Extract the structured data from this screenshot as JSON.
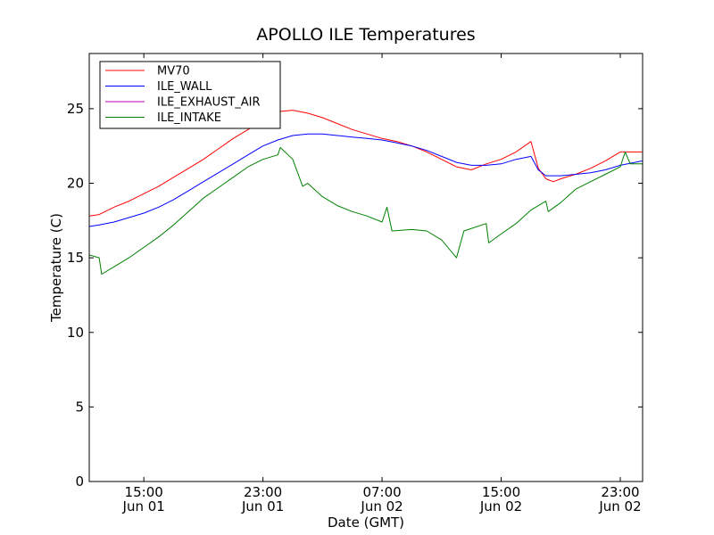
{
  "chart_data": {
    "type": "line",
    "title": "APOLLO ILE Temperatures",
    "xlabel": "Date (GMT)",
    "ylabel": "Temperature (C)",
    "xlim": [
      "2012-06-01 11:20",
      "2012-06-03 00:30"
    ],
    "ylim": [
      0,
      28.7
    ],
    "x_ticks": [
      {
        "value": "2012-06-01 15:00",
        "label": "15:00",
        "sublabel": "Jun 01"
      },
      {
        "value": "2012-06-01 23:00",
        "label": "23:00",
        "sublabel": "Jun 01"
      },
      {
        "value": "2012-06-02 07:00",
        "label": "07:00",
        "sublabel": "Jun 02"
      },
      {
        "value": "2012-06-02 15:00",
        "label": "15:00",
        "sublabel": "Jun 02"
      },
      {
        "value": "2012-06-02 23:00",
        "label": "23:00",
        "sublabel": "Jun 02"
      }
    ],
    "y_ticks": [
      0,
      5,
      10,
      15,
      20,
      25
    ],
    "grid": false,
    "legend": {
      "position": "top-left"
    },
    "series": [
      {
        "name": "MV70",
        "color": "#ff0000",
        "points": [
          [
            "2012-06-01 11:20",
            17.8
          ],
          [
            "2012-06-01 12:00",
            17.9
          ],
          [
            "2012-06-01 13:00",
            18.4
          ],
          [
            "2012-06-01 14:00",
            18.8
          ],
          [
            "2012-06-01 15:00",
            19.3
          ],
          [
            "2012-06-01 16:00",
            19.8
          ],
          [
            "2012-06-01 17:00",
            20.4
          ],
          [
            "2012-06-01 18:00",
            21.0
          ],
          [
            "2012-06-01 19:00",
            21.6
          ],
          [
            "2012-06-01 20:00",
            22.3
          ],
          [
            "2012-06-01 21:00",
            23.0
          ],
          [
            "2012-06-01 22:00",
            23.6
          ],
          [
            "2012-06-01 23:00",
            24.2
          ],
          [
            "2012-06-02 00:00",
            24.8
          ],
          [
            "2012-06-02 01:00",
            24.9
          ],
          [
            "2012-06-02 02:00",
            24.7
          ],
          [
            "2012-06-02 03:00",
            24.4
          ],
          [
            "2012-06-02 04:00",
            24.0
          ],
          [
            "2012-06-02 05:00",
            23.6
          ],
          [
            "2012-06-02 06:00",
            23.3
          ],
          [
            "2012-06-02 07:00",
            23.0
          ],
          [
            "2012-06-02 08:00",
            22.8
          ],
          [
            "2012-06-02 09:00",
            22.5
          ],
          [
            "2012-06-02 10:00",
            22.1
          ],
          [
            "2012-06-02 11:00",
            21.6
          ],
          [
            "2012-06-02 12:00",
            21.1
          ],
          [
            "2012-06-02 13:00",
            20.9
          ],
          [
            "2012-06-02 14:00",
            21.3
          ],
          [
            "2012-06-02 15:00",
            21.6
          ],
          [
            "2012-06-02 16:00",
            22.1
          ],
          [
            "2012-06-02 17:00",
            22.8
          ],
          [
            "2012-06-02 17:30",
            21.0
          ],
          [
            "2012-06-02 18:00",
            20.3
          ],
          [
            "2012-06-02 18:30",
            20.1
          ],
          [
            "2012-06-02 19:00",
            20.3
          ],
          [
            "2012-06-02 20:00",
            20.6
          ],
          [
            "2012-06-02 21:00",
            21.0
          ],
          [
            "2012-06-02 22:00",
            21.5
          ],
          [
            "2012-06-02 23:00",
            22.1
          ],
          [
            "2012-06-03 00:30",
            22.1
          ]
        ]
      },
      {
        "name": "ILE_WALL",
        "color": "#0000ff",
        "points": [
          [
            "2012-06-01 11:20",
            17.1
          ],
          [
            "2012-06-01 12:00",
            17.2
          ],
          [
            "2012-06-01 13:00",
            17.4
          ],
          [
            "2012-06-01 14:00",
            17.7
          ],
          [
            "2012-06-01 15:00",
            18.0
          ],
          [
            "2012-06-01 16:00",
            18.4
          ],
          [
            "2012-06-01 17:00",
            18.9
          ],
          [
            "2012-06-01 18:00",
            19.5
          ],
          [
            "2012-06-01 19:00",
            20.1
          ],
          [
            "2012-06-01 20:00",
            20.7
          ],
          [
            "2012-06-01 21:00",
            21.3
          ],
          [
            "2012-06-01 22:00",
            21.9
          ],
          [
            "2012-06-01 23:00",
            22.5
          ],
          [
            "2012-06-02 00:00",
            22.9
          ],
          [
            "2012-06-02 01:00",
            23.2
          ],
          [
            "2012-06-02 02:00",
            23.3
          ],
          [
            "2012-06-02 03:00",
            23.3
          ],
          [
            "2012-06-02 04:00",
            23.2
          ],
          [
            "2012-06-02 05:00",
            23.1
          ],
          [
            "2012-06-02 06:00",
            23.0
          ],
          [
            "2012-06-02 07:00",
            22.9
          ],
          [
            "2012-06-02 08:00",
            22.7
          ],
          [
            "2012-06-02 09:00",
            22.5
          ],
          [
            "2012-06-02 10:00",
            22.2
          ],
          [
            "2012-06-02 11:00",
            21.8
          ],
          [
            "2012-06-02 12:00",
            21.4
          ],
          [
            "2012-06-02 13:00",
            21.2
          ],
          [
            "2012-06-02 14:00",
            21.2
          ],
          [
            "2012-06-02 15:00",
            21.3
          ],
          [
            "2012-06-02 16:00",
            21.6
          ],
          [
            "2012-06-02 17:00",
            21.8
          ],
          [
            "2012-06-02 17:30",
            20.9
          ],
          [
            "2012-06-02 18:00",
            20.5
          ],
          [
            "2012-06-02 19:00",
            20.5
          ],
          [
            "2012-06-02 20:00",
            20.6
          ],
          [
            "2012-06-02 21:00",
            20.7
          ],
          [
            "2012-06-02 22:00",
            20.9
          ],
          [
            "2012-06-02 23:00",
            21.2
          ],
          [
            "2012-06-03 00:30",
            21.5
          ]
        ]
      },
      {
        "name": "ILE_EXHAUST_AIR",
        "color": "#bf00bf",
        "points": []
      },
      {
        "name": "ILE_INTAKE",
        "color": "#008000",
        "points": [
          [
            "2012-06-01 11:20",
            15.2
          ],
          [
            "2012-06-01 12:00",
            15.0
          ],
          [
            "2012-06-01 12:10",
            13.9
          ],
          [
            "2012-06-01 13:00",
            14.4
          ],
          [
            "2012-06-01 14:00",
            15.0
          ],
          [
            "2012-06-01 15:00",
            15.7
          ],
          [
            "2012-06-01 16:00",
            16.4
          ],
          [
            "2012-06-01 17:00",
            17.2
          ],
          [
            "2012-06-01 18:00",
            18.1
          ],
          [
            "2012-06-01 19:00",
            19.0
          ],
          [
            "2012-06-01 20:00",
            19.7
          ],
          [
            "2012-06-01 21:00",
            20.4
          ],
          [
            "2012-06-01 22:00",
            21.1
          ],
          [
            "2012-06-01 23:00",
            21.6
          ],
          [
            "2012-06-02 00:00",
            21.9
          ],
          [
            "2012-06-02 00:10",
            22.4
          ],
          [
            "2012-06-02 01:00",
            21.6
          ],
          [
            "2012-06-02 01:40",
            19.8
          ],
          [
            "2012-06-02 02:00",
            20.0
          ],
          [
            "2012-06-02 03:00",
            19.1
          ],
          [
            "2012-06-02 04:00",
            18.5
          ],
          [
            "2012-06-02 05:00",
            18.1
          ],
          [
            "2012-06-02 06:00",
            17.8
          ],
          [
            "2012-06-02 07:00",
            17.4
          ],
          [
            "2012-06-02 07:20",
            18.4
          ],
          [
            "2012-06-02 07:40",
            16.8
          ],
          [
            "2012-06-02 09:00",
            16.9
          ],
          [
            "2012-06-02 10:00",
            16.8
          ],
          [
            "2012-06-02 11:00",
            16.2
          ],
          [
            "2012-06-02 12:00",
            15.0
          ],
          [
            "2012-06-02 12:30",
            16.8
          ],
          [
            "2012-06-02 14:00",
            17.3
          ],
          [
            "2012-06-02 14:10",
            16.0
          ],
          [
            "2012-06-02 15:00",
            16.6
          ],
          [
            "2012-06-02 16:00",
            17.3
          ],
          [
            "2012-06-02 17:00",
            18.2
          ],
          [
            "2012-06-02 18:00",
            18.8
          ],
          [
            "2012-06-02 18:10",
            18.1
          ],
          [
            "2012-06-02 19:00",
            18.7
          ],
          [
            "2012-06-02 20:00",
            19.6
          ],
          [
            "2012-06-02 21:00",
            20.1
          ],
          [
            "2012-06-02 22:00",
            20.6
          ],
          [
            "2012-06-02 23:00",
            21.1
          ],
          [
            "2012-06-02 23:20",
            22.1
          ],
          [
            "2012-06-02 23:40",
            21.3
          ],
          [
            "2012-06-03 00:30",
            21.3
          ]
        ]
      }
    ]
  }
}
